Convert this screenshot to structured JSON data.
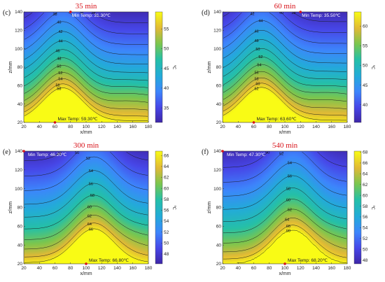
{
  "chart_data": [
    {
      "type": "heatmap",
      "label": "(c)",
      "title": "35 min",
      "xlabel": "x/mm",
      "ylabel": "z/mm",
      "xlim": [
        20,
        180
      ],
      "ylim": [
        20,
        140
      ],
      "xticks": [
        "20",
        "40",
        "60",
        "80",
        "100",
        "120",
        "140",
        "160",
        "180"
      ],
      "yticks": [
        "20",
        "40",
        "60",
        "80",
        "100",
        "120",
        "140"
      ],
      "colorbar": {
        "min": 31.3,
        "max": 59.3,
        "ticks": [
          "35",
          "40",
          "45",
          "50",
          "55"
        ],
        "unit": "℃"
      },
      "annotations": {
        "min_temp": "Min Temp: 31.30℃",
        "max_temp": "Max Temp: 59.30℃"
      },
      "min_point": [
        80,
        140
      ],
      "max_point": [
        60,
        20
      ],
      "contour_levels": [
        32,
        34,
        36,
        38,
        40,
        42,
        44,
        46,
        48,
        50,
        52,
        54,
        56,
        58
      ],
      "contour_labels": [
        "32",
        "34",
        "36",
        "38",
        "40",
        "42",
        "44",
        "46",
        "48",
        "50",
        "52",
        "54",
        "56",
        "58"
      ]
    },
    {
      "type": "heatmap",
      "label": "(d)",
      "title": "60 min",
      "xlabel": "x/mm",
      "ylabel": "z/mm",
      "xlim": [
        20,
        180
      ],
      "ylim": [
        20,
        140
      ],
      "xticks": [
        "20",
        "40",
        "60",
        "80",
        "100",
        "120",
        "140",
        "160",
        "180"
      ],
      "yticks": [
        "20",
        "40",
        "60",
        "80",
        "100",
        "120",
        "140"
      ],
      "colorbar": {
        "min": 35.5,
        "max": 63.6,
        "ticks": [
          "40",
          "45",
          "50",
          "55",
          "60"
        ],
        "unit": "℃"
      },
      "annotations": {
        "min_temp": "Min Temp: 35.50℃",
        "max_temp": "Max Temp: 63.60℃"
      },
      "min_point": [
        120,
        140
      ],
      "max_point": [
        60,
        20
      ],
      "contour_levels": [
        36,
        38,
        40,
        42,
        44,
        46,
        48,
        50,
        52,
        54,
        56,
        58,
        60,
        62
      ],
      "contour_labels": [
        "36",
        "38",
        "40",
        "42",
        "44",
        "46",
        "48",
        "50",
        "52",
        "54",
        "56",
        "58",
        "60",
        "62"
      ]
    },
    {
      "type": "heatmap",
      "label": "(e)",
      "title": "300 min",
      "xlabel": "x/mm",
      "ylabel": "z/mm",
      "xlim": [
        20,
        180
      ],
      "ylim": [
        20,
        140
      ],
      "xticks": [
        "20",
        "40",
        "60",
        "80",
        "100",
        "120",
        "140",
        "160",
        "180"
      ],
      "yticks": [
        "20",
        "40",
        "60",
        "80",
        "100",
        "120",
        "140"
      ],
      "colorbar": {
        "min": 46.2,
        "max": 66.8,
        "ticks": [
          "48",
          "50",
          "52",
          "54",
          "56",
          "58",
          "60",
          "62",
          "64",
          "66"
        ],
        "unit": "℃"
      },
      "annotations": {
        "min_temp": "Min Temp: 46.20℃",
        "max_temp": "Max Temp: 66.80℃"
      },
      "min_point": [
        20,
        140
      ],
      "max_point": [
        100,
        20
      ],
      "contour_levels": [
        48,
        50,
        52,
        54,
        56,
        58,
        60,
        62,
        64,
        66
      ],
      "contour_labels": [
        "48",
        "50",
        "52",
        "54",
        "56",
        "58",
        "60",
        "62",
        "64",
        "66"
      ]
    },
    {
      "type": "heatmap",
      "label": "(f)",
      "title": "540 min",
      "xlabel": "x/mm",
      "ylabel": "z/mm",
      "xlim": [
        20,
        180
      ],
      "ylim": [
        20,
        140
      ],
      "xticks": [
        "20",
        "40",
        "60",
        "80",
        "100",
        "120",
        "140",
        "160",
        "180"
      ],
      "yticks": [
        "20",
        "40",
        "60",
        "80",
        "100",
        "120",
        "140"
      ],
      "colorbar": {
        "min": 47.3,
        "max": 68.2,
        "ticks": [
          "48",
          "50",
          "52",
          "54",
          "56",
          "58",
          "60",
          "62",
          "64",
          "66",
          "68"
        ],
        "unit": "℃"
      },
      "annotations": {
        "min_temp": "Min Temp: 47.30℃",
        "max_temp": "Max Temp: 68.20℃"
      },
      "min_point": [
        20,
        140
      ],
      "max_point": [
        100,
        20
      ],
      "contour_levels": [
        48,
        50,
        52,
        54,
        56,
        58,
        60,
        62,
        64,
        66,
        68
      ],
      "contour_labels": [
        "48",
        "50",
        "52",
        "54",
        "56",
        "58",
        "60",
        "62",
        "64",
        "66",
        "68"
      ]
    }
  ]
}
